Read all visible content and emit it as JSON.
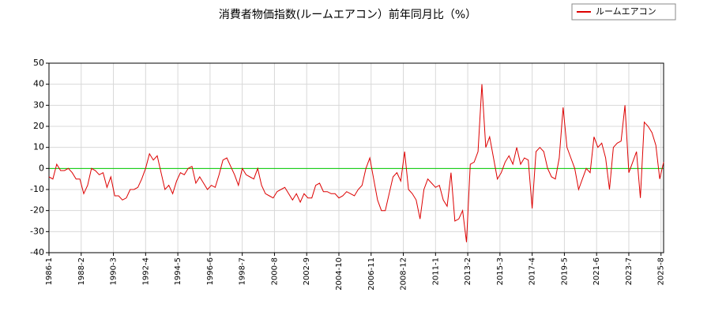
{
  "chart_data": {
    "type": "line",
    "title": "消費者物価指数(ルームエアコン）前年同月比（%）",
    "x": [
      "1986-1",
      "1986-4",
      "1986-7",
      "1986-10",
      "1987-1",
      "1987-4",
      "1987-7",
      "1987-10",
      "1988-1",
      "1988-4",
      "1988-7",
      "1988-10",
      "1989-1",
      "1989-4",
      "1989-7",
      "1989-10",
      "1990-1",
      "1990-4",
      "1990-7",
      "1990-10",
      "1991-1",
      "1991-4",
      "1991-7",
      "1991-10",
      "1992-1",
      "1992-4",
      "1992-7",
      "1992-10",
      "1993-1",
      "1993-4",
      "1993-7",
      "1993-10",
      "1994-1",
      "1994-4",
      "1994-7",
      "1994-10",
      "1995-1",
      "1995-4",
      "1995-7",
      "1995-10",
      "1996-1",
      "1996-4",
      "1996-7",
      "1996-10",
      "1997-1",
      "1997-4",
      "1997-7",
      "1997-10",
      "1998-1",
      "1998-4",
      "1998-7",
      "1998-10",
      "1999-1",
      "1999-4",
      "1999-7",
      "1999-10",
      "2000-1",
      "2000-4",
      "2000-7",
      "2000-10",
      "2001-1",
      "2001-4",
      "2001-7",
      "2001-10",
      "2002-1",
      "2002-4",
      "2002-7",
      "2002-10",
      "2003-1",
      "2003-4",
      "2003-7",
      "2003-10",
      "2004-1",
      "2004-4",
      "2004-7",
      "2004-10",
      "2005-1",
      "2005-4",
      "2005-7",
      "2005-10",
      "2006-1",
      "2006-4",
      "2006-7",
      "2006-10",
      "2007-1",
      "2007-4",
      "2007-7",
      "2007-10",
      "2008-1",
      "2008-4",
      "2008-7",
      "2008-10",
      "2009-1",
      "2009-4",
      "2009-7",
      "2009-10",
      "2010-1",
      "2010-4",
      "2010-7",
      "2010-10",
      "2011-1",
      "2011-4",
      "2011-7",
      "2011-10",
      "2012-1",
      "2012-4",
      "2012-7",
      "2012-10",
      "2013-1",
      "2013-4",
      "2013-7",
      "2013-10",
      "2014-1",
      "2014-4",
      "2014-7",
      "2014-10",
      "2015-1",
      "2015-4",
      "2015-7",
      "2015-10",
      "2016-1",
      "2016-4",
      "2016-7",
      "2016-10",
      "2017-1",
      "2017-4",
      "2017-7",
      "2017-10",
      "2018-1",
      "2018-4",
      "2018-7",
      "2018-10",
      "2019-1",
      "2019-4",
      "2019-7",
      "2019-10",
      "2020-1",
      "2020-4",
      "2020-7",
      "2020-10",
      "2021-1",
      "2021-4",
      "2021-7",
      "2021-10",
      "2022-1",
      "2022-4",
      "2022-7",
      "2022-10",
      "2023-1",
      "2023-4",
      "2023-7",
      "2023-10",
      "2024-1",
      "2024-4",
      "2024-7",
      "2024-10",
      "2025-1",
      "2025-4",
      "2025-7",
      "2025-10"
    ],
    "series": [
      {
        "name": "ルームエアコン",
        "color": "#dd0000",
        "values": [
          -4,
          -5,
          2,
          -1,
          -1,
          0,
          -2,
          -5,
          -5,
          -12,
          -8,
          0,
          -1,
          -3,
          -2,
          -9,
          -4,
          -13,
          -13,
          -15,
          -14,
          -10,
          -10,
          -9,
          -5,
          0,
          7,
          4,
          6,
          -2,
          -10,
          -8,
          -12,
          -6,
          -2,
          -3,
          0,
          1,
          -7,
          -4,
          -7,
          -10,
          -8,
          -9,
          -3,
          4,
          5,
          1,
          -3,
          -8,
          0,
          -3,
          -4,
          -5,
          0,
          -8,
          -12,
          -13,
          -14,
          -11,
          -10,
          -9,
          -12,
          -15,
          -12,
          -16,
          -12,
          -14,
          -14,
          -8,
          -7,
          -11,
          -11,
          -12,
          -12,
          -14,
          -13,
          -11,
          -12,
          -13,
          -10,
          -8,
          0,
          5,
          -5,
          -15,
          -20,
          -20,
          -12,
          -4,
          -2,
          -6,
          8,
          -10,
          -12,
          -15,
          -24,
          -10,
          -5,
          -7,
          -9,
          -8,
          -15,
          -18,
          -2,
          -25,
          -24,
          -20,
          -35,
          2,
          3,
          8,
          40,
          10,
          15,
          5,
          -5,
          -2,
          3,
          6,
          2,
          10,
          2,
          5,
          4,
          -19,
          8,
          10,
          8,
          0,
          -4,
          -5,
          5,
          29,
          10,
          5,
          0,
          -10,
          -5,
          0,
          -2,
          15,
          10,
          12,
          5,
          -10,
          10,
          12,
          13,
          30,
          -2,
          3,
          8,
          -14,
          22,
          20,
          17,
          11,
          -5,
          3
        ]
      }
    ],
    "xlim": [
      "1986-1",
      "2025-10"
    ],
    "xticks": [
      "1986-1",
      "1988-2",
      "1990-3",
      "1992-4",
      "1994-5",
      "1996-6",
      "1998-7",
      "2000-8",
      "2002-9",
      "2004-10",
      "2006-11",
      "2008-12",
      "2011-1",
      "2013-2",
      "2015-3",
      "2017-4",
      "2019-5",
      "2021-6",
      "2023-7",
      "2025-8"
    ],
    "ylim": [
      -40,
      50
    ],
    "yticks": [
      -40,
      -30,
      -20,
      -10,
      0,
      10,
      20,
      30,
      40,
      50
    ],
    "grid": true,
    "zero_line_color": "#00cc00",
    "legend": "top-right"
  }
}
